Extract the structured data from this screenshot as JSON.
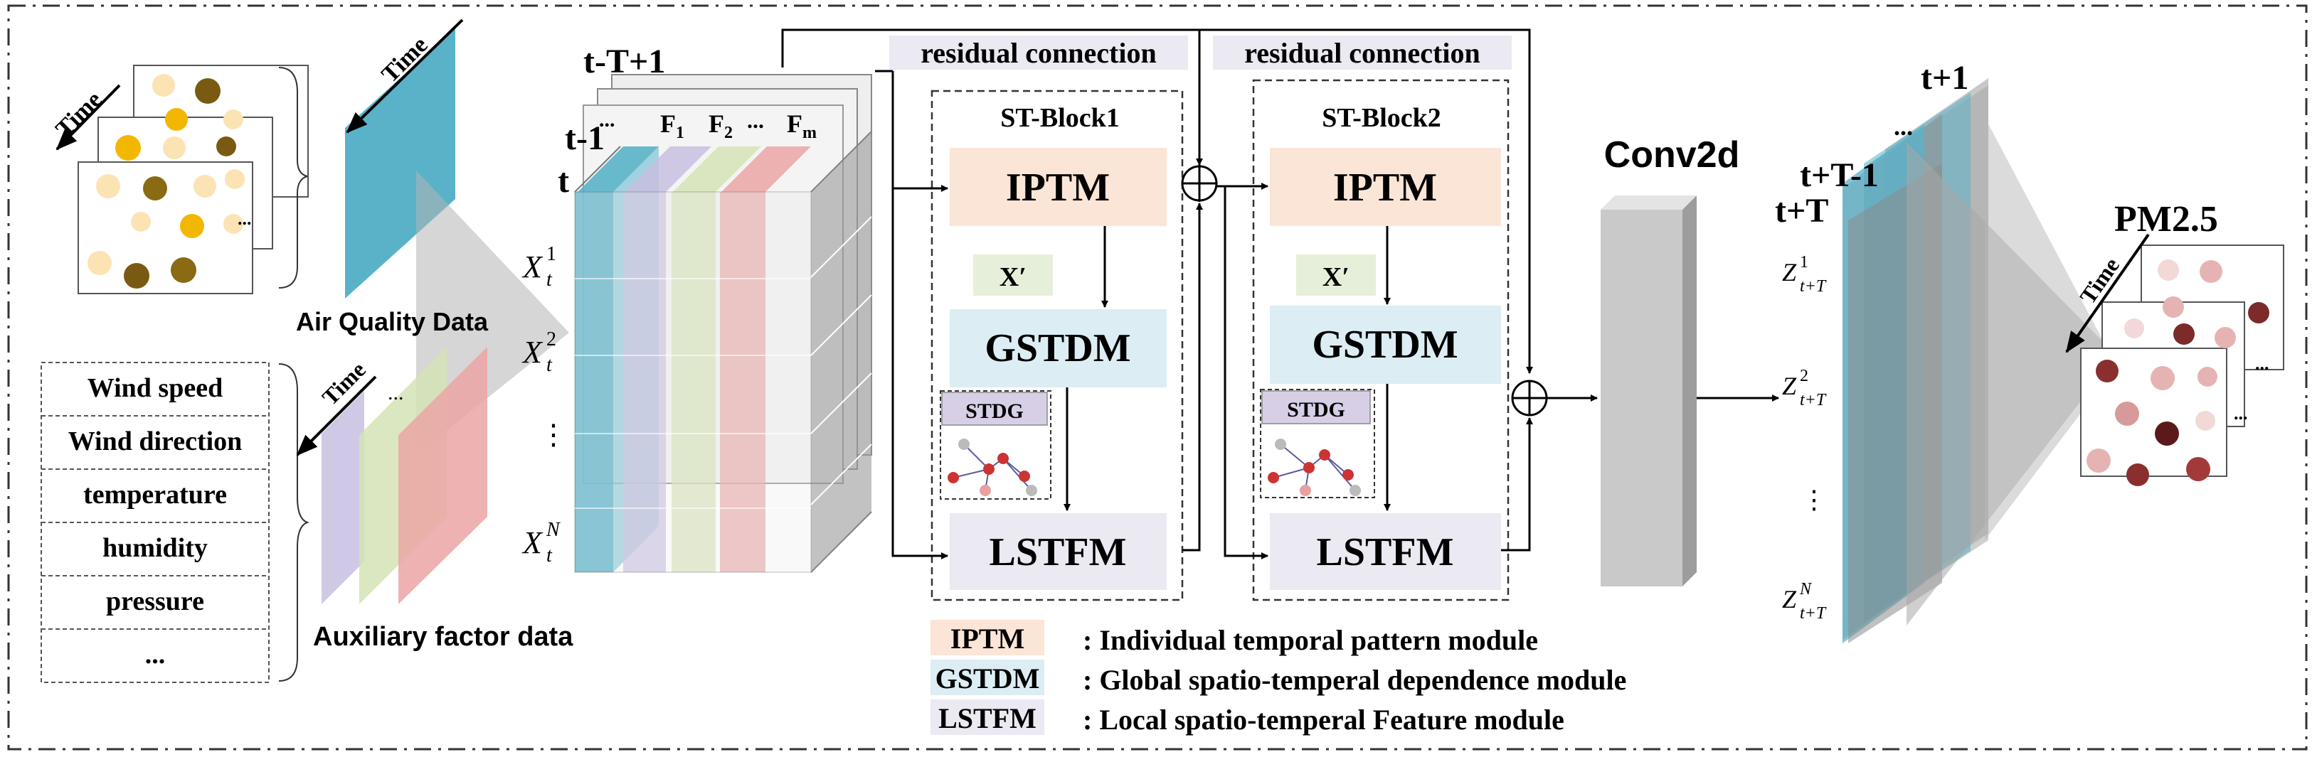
{
  "input": {
    "time_label": "Time",
    "air_quality_label": "Air Quality Data",
    "ellipsis": "...",
    "aux_time_label": "Time",
    "aux_label": "Auxiliary factor data",
    "aux_factors": [
      "Wind speed",
      "Wind direction",
      "temperature",
      "humidity",
      "pressure",
      "..."
    ]
  },
  "tensor": {
    "t_labels": [
      "t-T+1",
      "t-1",
      "t"
    ],
    "t_dots": "...",
    "features": [
      "F",
      "F",
      "...",
      "F"
    ],
    "feature_subs": [
      "1",
      "2",
      "",
      "m"
    ],
    "node_base": "X",
    "node_sub": "t",
    "node_sups": [
      "1",
      "2",
      "N"
    ],
    "vdots": "⋮"
  },
  "blocks": {
    "residual_1": "residual connection",
    "residual_2": "residual connection",
    "block1_title": "ST-Block1",
    "block2_title": "ST-Block2",
    "iptm": "IPTM",
    "gstdm": "GSTDM",
    "lstfm": "LSTFM",
    "x_prime": "X′",
    "stdg": "STDG"
  },
  "output": {
    "conv_label": "Conv2d",
    "t_labels": [
      "t+1",
      "...",
      "t+T-1",
      "t+T"
    ],
    "node_base": "Z",
    "node_sub": "t+T",
    "node_sups": [
      "1",
      "2",
      "N"
    ],
    "vdots": "⋮",
    "pm_label": "PM2.5",
    "time_label": "Time",
    "ellipsis": "..."
  },
  "legend": [
    {
      "abbr": "IPTM",
      "desc": ": Individual temporal pattern module",
      "color": "#fbe5d6"
    },
    {
      "abbr": "GSTDM",
      "desc": ": Global spatio-temperal dependence module",
      "color": "#dcedf3"
    },
    {
      "abbr": "LSTFM",
      "desc": ": Local spatio-temperal Feature module",
      "color": "#ebe9f1"
    }
  ],
  "colors": {
    "yellow_dot": "#f4b400",
    "brown_dot": "#8a6a12",
    "aq_blue": "#5ab2c9",
    "purple_layer": "#c8bfe0",
    "green_layer": "#d5e3b5",
    "pink_layer": "#eba5a5",
    "iptm_fill": "#fbe5d6",
    "gstdm_fill": "#dcedf3",
    "lstfm_fill": "#ebe9f1",
    "stdg_fill": "#d7cfe6",
    "conv_fill": "#c9c9c9",
    "pm_dark": "#7c2a2a",
    "pm_light": "#e6b3b3"
  }
}
